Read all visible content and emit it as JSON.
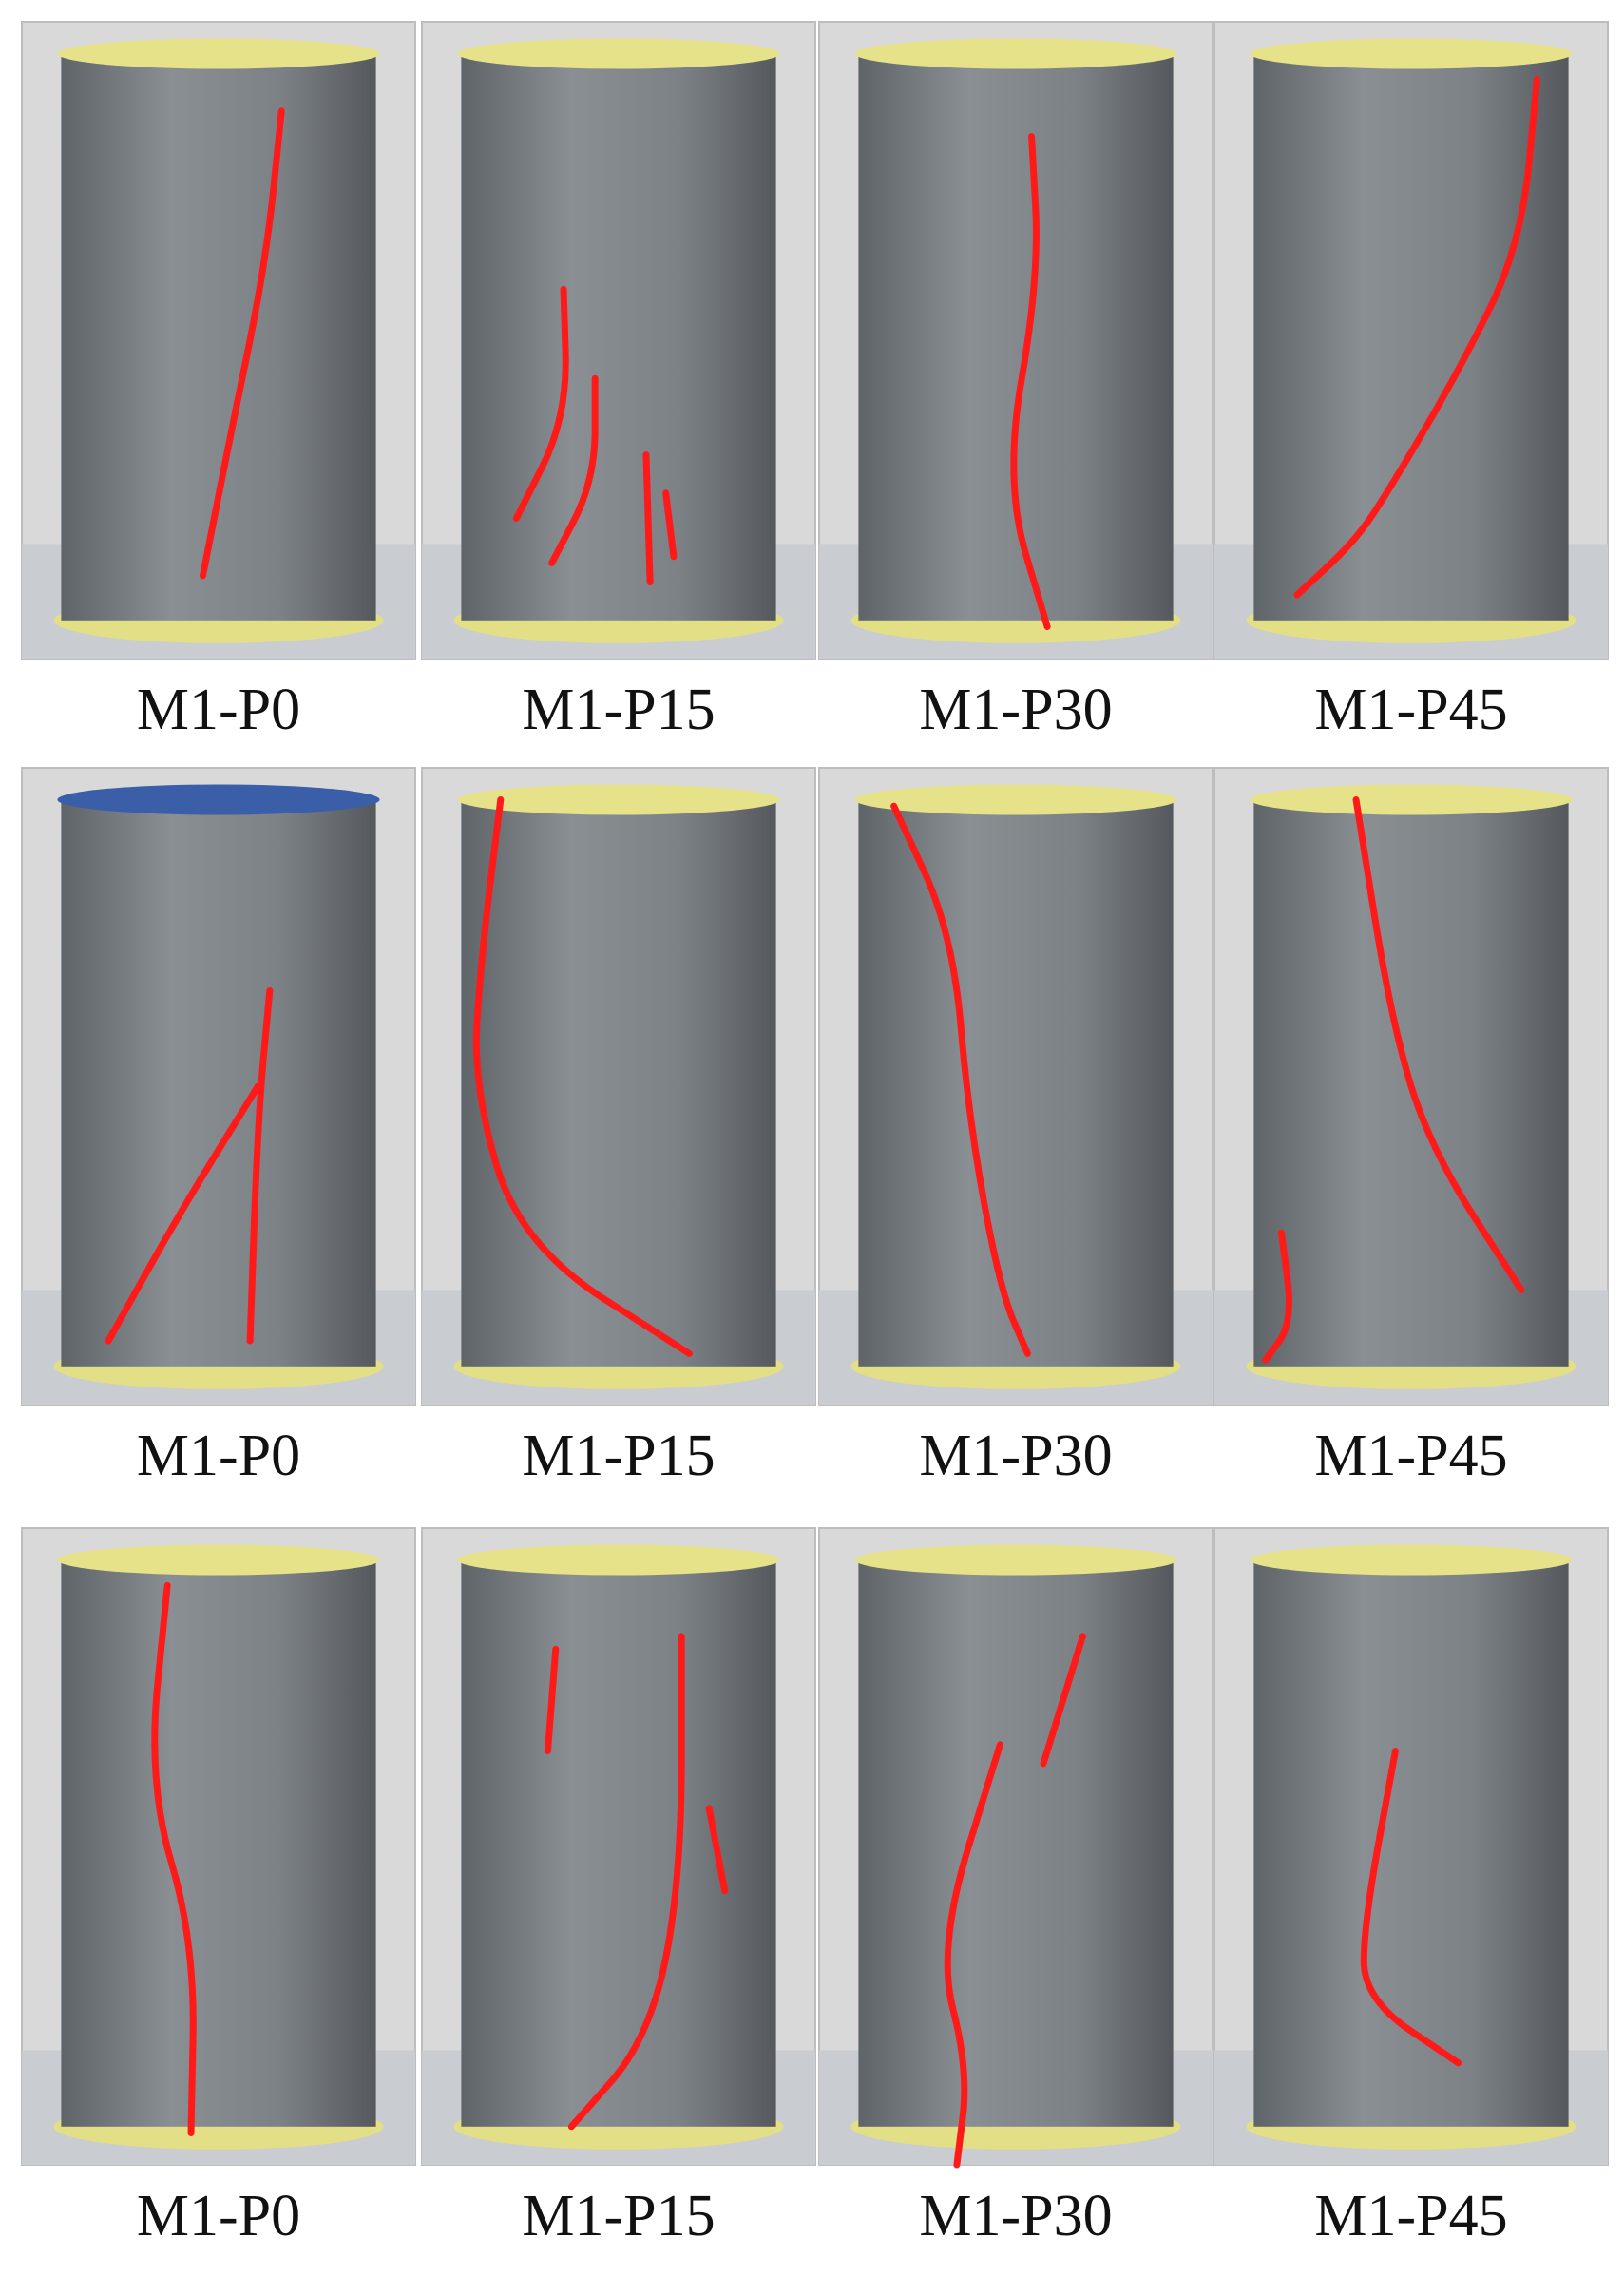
{
  "figure": {
    "rows": [
      [
        "M1-P0",
        "M1-P15",
        "M1-P30",
        "M1-P45"
      ],
      [
        "M1-P0",
        "M1-P15",
        "M1-P30",
        "M1-P45"
      ],
      [
        "M1-P0",
        "M1-P15",
        "M1-P30",
        "M1-P45"
      ]
    ]
  }
}
